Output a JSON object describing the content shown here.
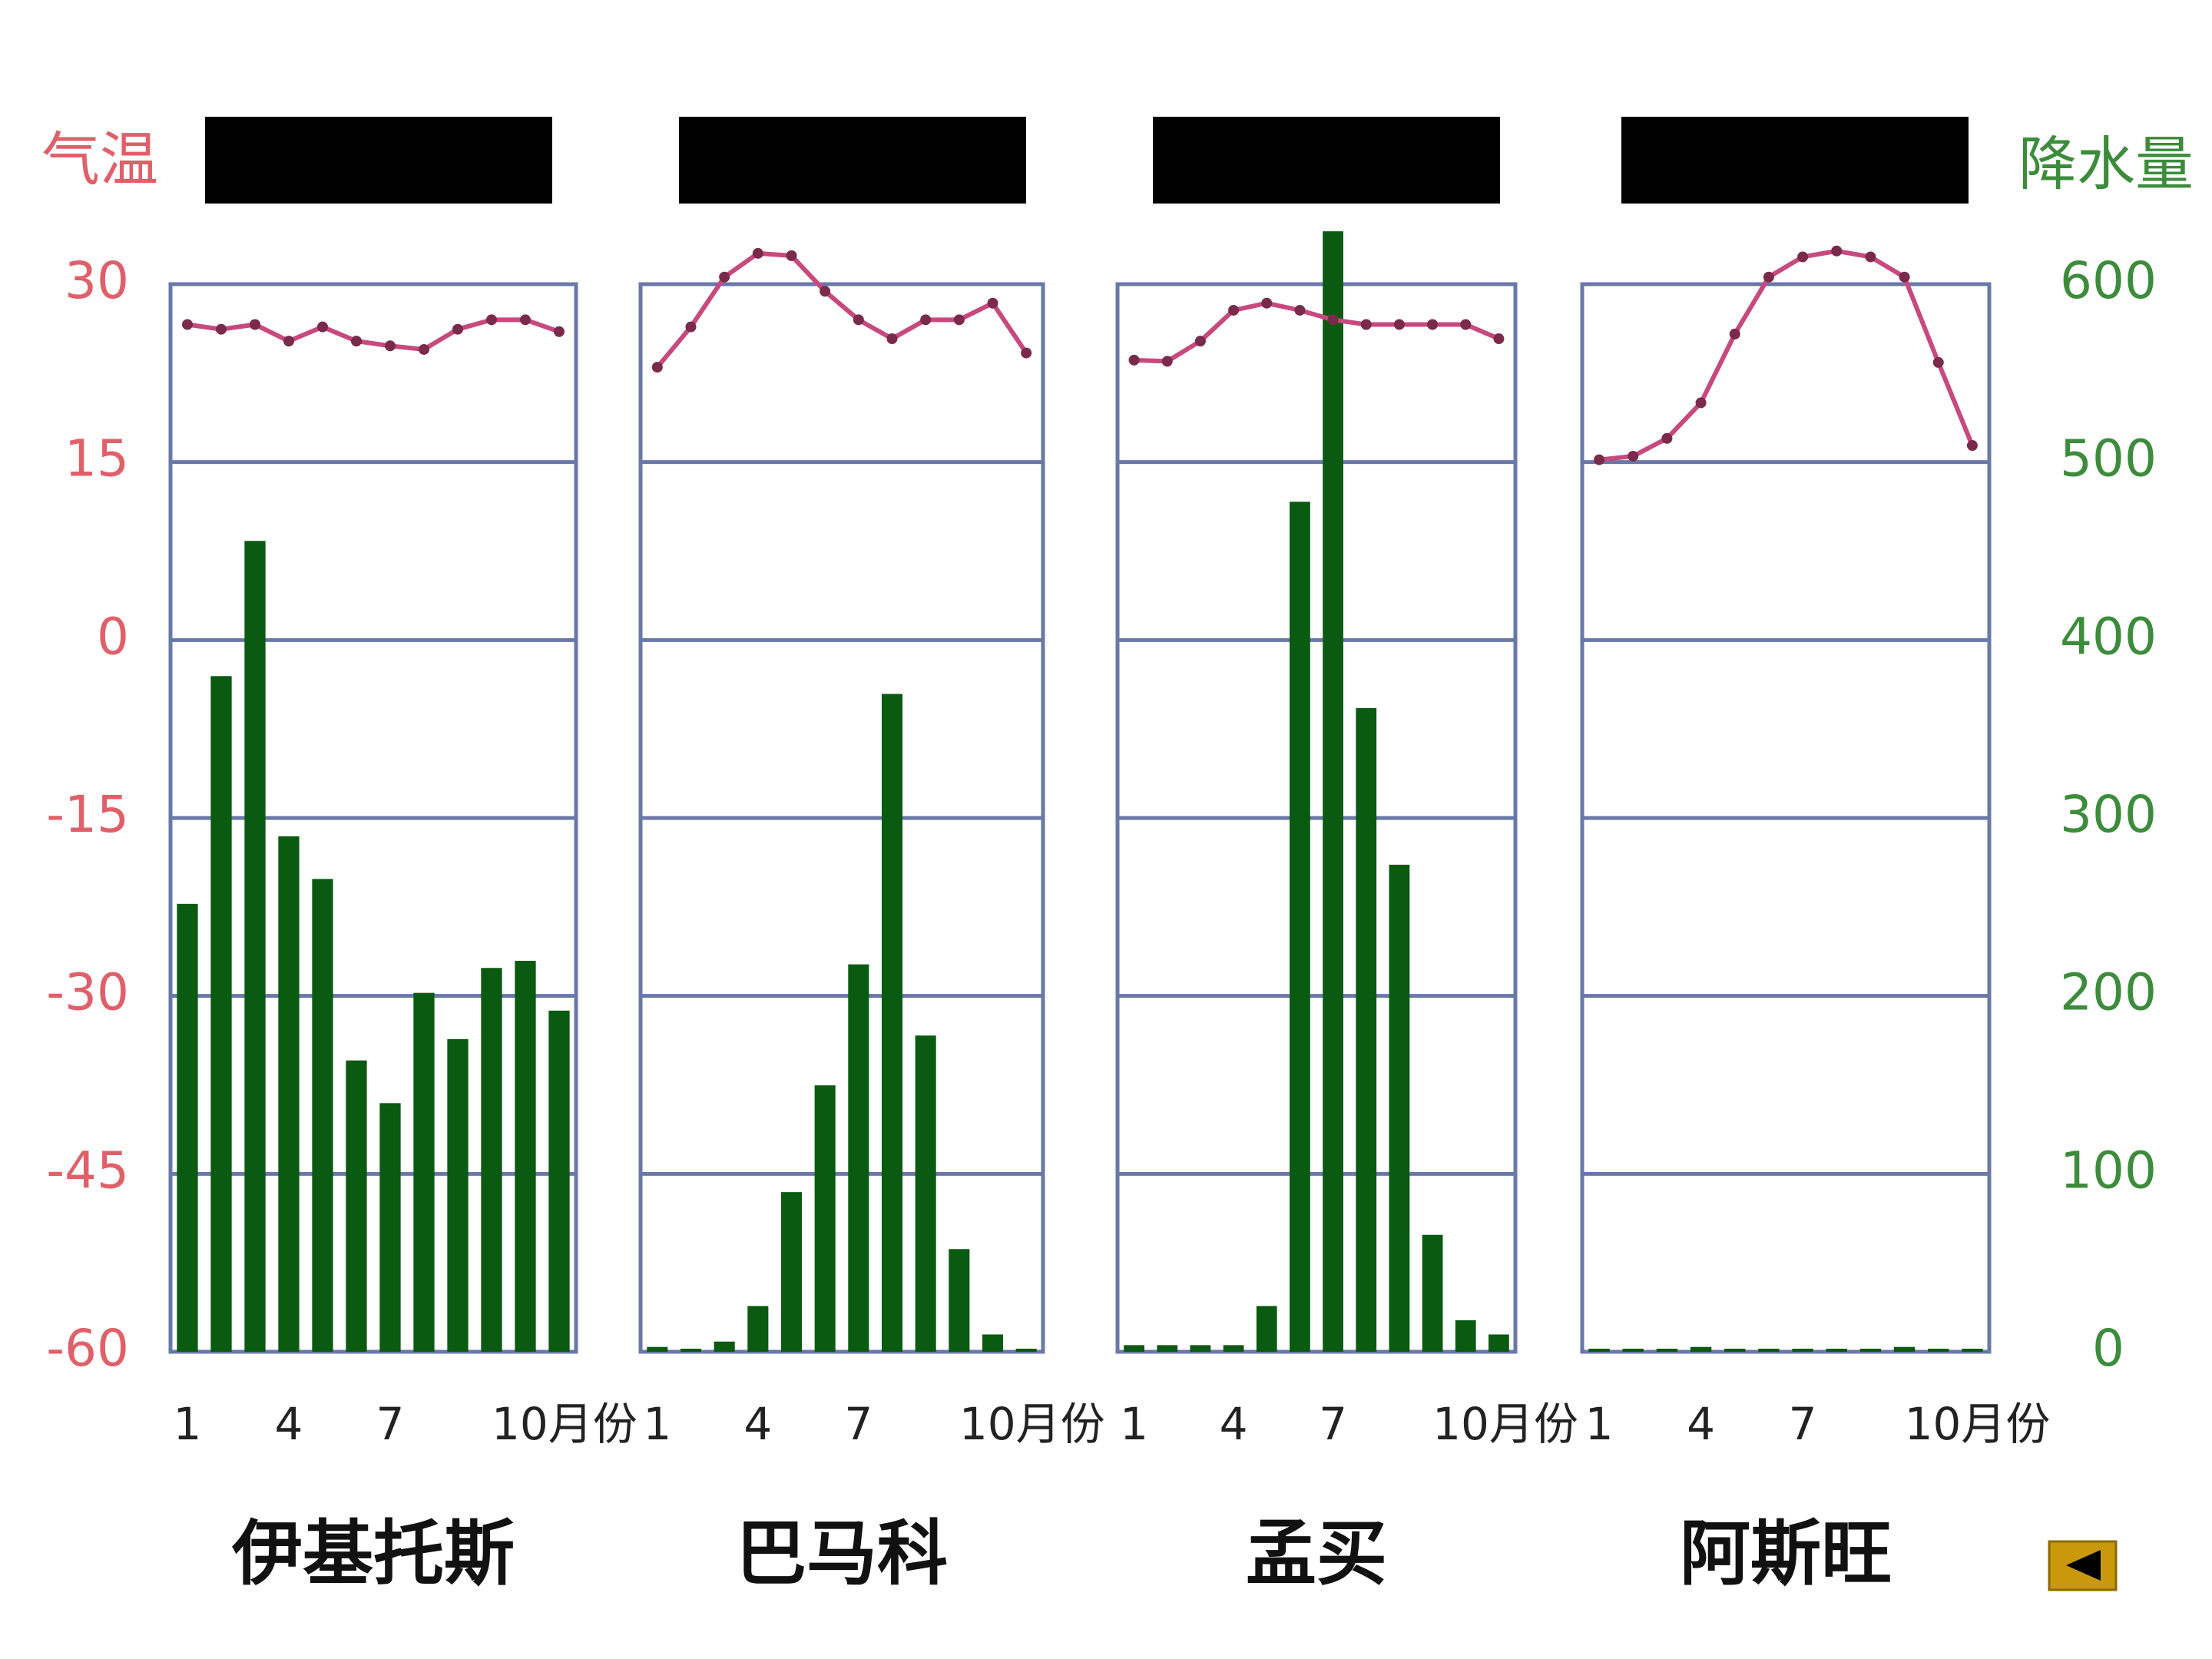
{
  "chart_data": [
    {
      "type": "bar",
      "title": "伊基托斯",
      "y_label": "气温",
      "categories": [
        "1",
        null,
        null,
        "4",
        null,
        null,
        "7",
        null,
        null,
        "10月份",
        null,
        null
      ],
      "ylim": [
        -60,
        30
      ],
      "yticks": [
        -60,
        -45,
        -30,
        -15,
        0,
        15,
        30
      ],
      "y2lim": [
        0,
        600
      ],
      "grid": true,
      "series": [
        {
          "type": "line",
          "color": "#c8497e",
          "values": [
            26.6,
            26.2,
            26.6,
            25.2,
            26.4,
            25.2,
            24.8,
            24.5,
            26.2,
            27,
            27,
            26
          ]
        },
        {
          "type": "bar",
          "axis": "y2",
          "color": "#0b5a12",
          "values": [
            250,
            378,
            454,
            288,
            264,
            162,
            138,
            200,
            174,
            214,
            218,
            190
          ]
        }
      ]
    },
    {
      "type": "bar",
      "title": "巴马科",
      "categories": [
        "1",
        null,
        null,
        "4",
        null,
        null,
        "7",
        null,
        null,
        "10月份",
        null,
        null
      ],
      "ylim": [
        -60,
        30
      ],
      "y2lim": [
        0,
        600
      ],
      "grid": true,
      "series": [
        {
          "type": "line",
          "color": "#c8497e",
          "values": [
            23,
            26.4,
            30.6,
            32.6,
            32.4,
            29.4,
            27,
            25.4,
            27,
            27,
            28.4,
            24.2
          ]
        },
        {
          "type": "bar",
          "axis": "y2",
          "color": "#0b5a12",
          "values": [
            1,
            0,
            4,
            24,
            88,
            148,
            216,
            368,
            176,
            56,
            8,
            0
          ]
        }
      ]
    },
    {
      "type": "bar",
      "title": "孟买",
      "categories": [
        "1",
        null,
        null,
        "4",
        null,
        null,
        "7",
        null,
        null,
        "10月份",
        null,
        null
      ],
      "ylim": [
        -60,
        30
      ],
      "y2lim": [
        0,
        600
      ],
      "grid": true,
      "series": [
        {
          "type": "line",
          "color": "#c8497e",
          "values": [
            23.6,
            23.5,
            25.2,
            27.8,
            28.4,
            27.8,
            27,
            26.6,
            26.6,
            26.6,
            26.6,
            25.4
          ]
        },
        {
          "type": "bar",
          "axis": "y2",
          "color": "#0b5a12",
          "values": [
            2,
            2,
            2,
            2,
            24,
            476,
            628,
            360,
            272,
            64,
            16,
            8
          ]
        }
      ]
    },
    {
      "type": "bar",
      "title": "阿斯旺",
      "y2_label": "降水量",
      "categories": [
        "1",
        null,
        null,
        "4",
        null,
        null,
        "7",
        null,
        null,
        "10月份",
        null,
        null
      ],
      "ylim": [
        -60,
        30
      ],
      "y2lim": [
        0,
        600
      ],
      "y2ticks": [
        0,
        100,
        200,
        300,
        400,
        500,
        600
      ],
      "grid": true,
      "series": [
        {
          "type": "line",
          "color": "#c8497e",
          "values": [
            15.2,
            15.5,
            17,
            20,
            25.8,
            30.6,
            32.3,
            32.8,
            32.3,
            30.6,
            23.4,
            16.4
          ]
        },
        {
          "type": "bar",
          "axis": "y2",
          "color": "#0b5a12",
          "values": [
            0,
            0,
            0,
            1,
            0,
            0,
            0,
            0,
            0,
            1,
            0,
            0
          ]
        }
      ]
    }
  ]
}
